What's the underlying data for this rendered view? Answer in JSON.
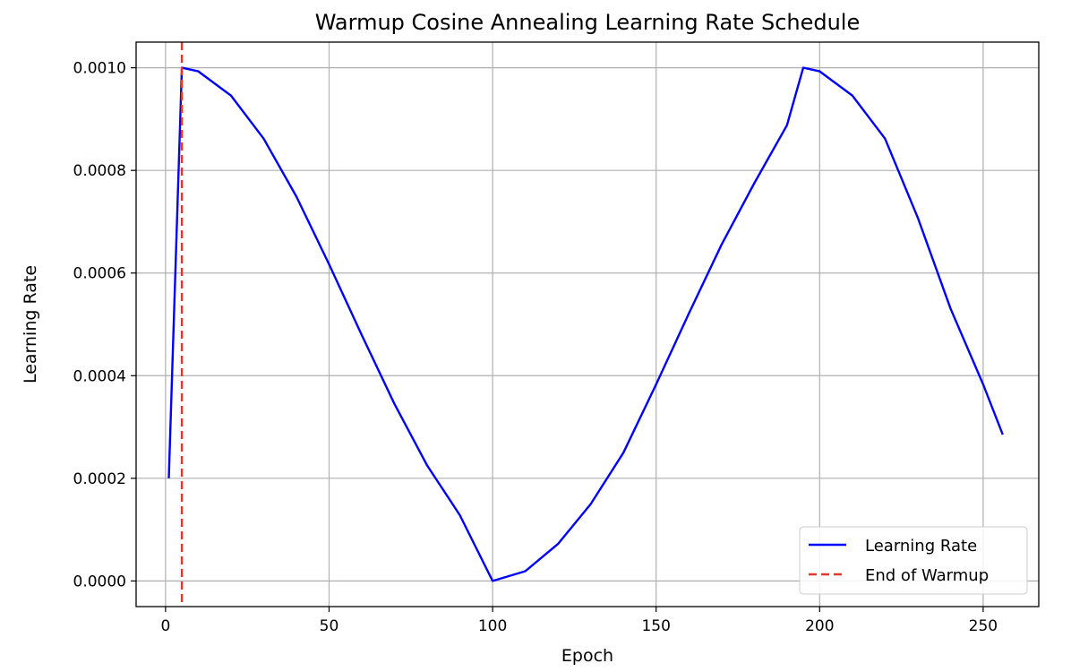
{
  "chart_data": {
    "type": "line",
    "title": "Warmup Cosine Annealing Learning Rate Schedule",
    "xlabel": "Epoch",
    "ylabel": "Learning Rate",
    "xlim": [
      -9,
      267
    ],
    "ylim": [
      -5e-05,
      0.00105
    ],
    "x_ticks": [
      0,
      50,
      100,
      150,
      200,
      250
    ],
    "x_tick_labels": [
      "0",
      "50",
      "100",
      "150",
      "200",
      "250"
    ],
    "y_ticks": [
      0.0,
      0.0002,
      0.0004,
      0.0006,
      0.0008,
      0.001
    ],
    "y_tick_labels": [
      "0.0000",
      "0.0002",
      "0.0004",
      "0.0006",
      "0.0008",
      "0.0010"
    ],
    "grid": true,
    "legend_position": "lower-right",
    "series": [
      {
        "name": "Learning Rate",
        "color": "#0000ff",
        "style": "solid",
        "x": [
          1,
          5,
          10,
          20,
          30,
          40,
          50,
          60,
          70,
          80,
          90,
          100,
          110,
          120,
          130,
          140,
          150,
          160,
          170,
          180,
          190,
          195,
          200,
          210,
          220,
          230,
          240,
          250,
          256
        ],
        "y": [
          0.0002,
          0.001,
          0.000993,
          0.000946,
          0.000862,
          0.000749,
          0.000617,
          0.000479,
          0.000345,
          0.000225,
          0.000128,
          0.0,
          1.9e-05,
          7.2e-05,
          0.00015,
          0.00025,
          0.000383,
          0.000521,
          0.000655,
          0.000775,
          0.000888,
          0.001,
          0.000993,
          0.000946,
          0.000862,
          0.000708,
          0.000531,
          0.000383,
          0.000285
        ]
      },
      {
        "name": "End of Warmup",
        "color": "#e8352b",
        "style": "dashed",
        "vline_x": 5
      }
    ]
  }
}
